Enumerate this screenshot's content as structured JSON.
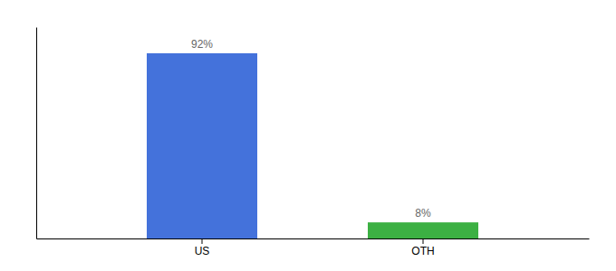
{
  "chart_data": {
    "type": "bar",
    "categories": [
      "US",
      "OTH"
    ],
    "values": [
      92,
      8
    ],
    "colors": [
      "#4472db",
      "#3cb043"
    ],
    "value_labels": [
      "92%",
      "8%"
    ],
    "data_labels": true,
    "ylim": [
      0,
      105
    ],
    "grid": false,
    "tick_labels": "x"
  }
}
